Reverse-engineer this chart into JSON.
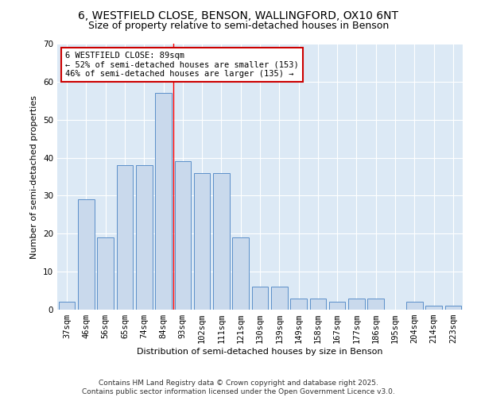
{
  "title": "6, WESTFIELD CLOSE, BENSON, WALLINGFORD, OX10 6NT",
  "subtitle": "Size of property relative to semi-detached houses in Benson",
  "xlabel": "Distribution of semi-detached houses by size in Benson",
  "ylabel": "Number of semi-detached properties",
  "categories": [
    "37sqm",
    "46sqm",
    "56sqm",
    "65sqm",
    "74sqm",
    "84sqm",
    "93sqm",
    "102sqm",
    "111sqm",
    "121sqm",
    "130sqm",
    "139sqm",
    "149sqm",
    "158sqm",
    "167sqm",
    "177sqm",
    "186sqm",
    "195sqm",
    "204sqm",
    "214sqm",
    "223sqm"
  ],
  "values": [
    2,
    29,
    19,
    38,
    38,
    57,
    39,
    36,
    36,
    19,
    6,
    6,
    3,
    3,
    2,
    3,
    3,
    0,
    2,
    1,
    1
  ],
  "bar_color": "#c9d9ec",
  "bar_edge_color": "#5b8fc9",
  "subject_line_bin_index": 5.5,
  "annotation_text": "6 WESTFIELD CLOSE: 89sqm\n← 52% of semi-detached houses are smaller (153)\n46% of semi-detached houses are larger (135) →",
  "annotation_box_color": "#ffffff",
  "annotation_box_edge_color": "#cc0000",
  "ylim": [
    0,
    70
  ],
  "yticks": [
    0,
    10,
    20,
    30,
    40,
    50,
    60,
    70
  ],
  "background_color": "#dce9f5",
  "plot_bg_color": "#dce9f5",
  "footer_text": "Contains HM Land Registry data © Crown copyright and database right 2025.\nContains public sector information licensed under the Open Government Licence v3.0.",
  "title_fontsize": 10,
  "subtitle_fontsize": 9,
  "axis_label_fontsize": 8,
  "tick_fontsize": 7.5,
  "annotation_fontsize": 7.5,
  "footer_fontsize": 6.5
}
